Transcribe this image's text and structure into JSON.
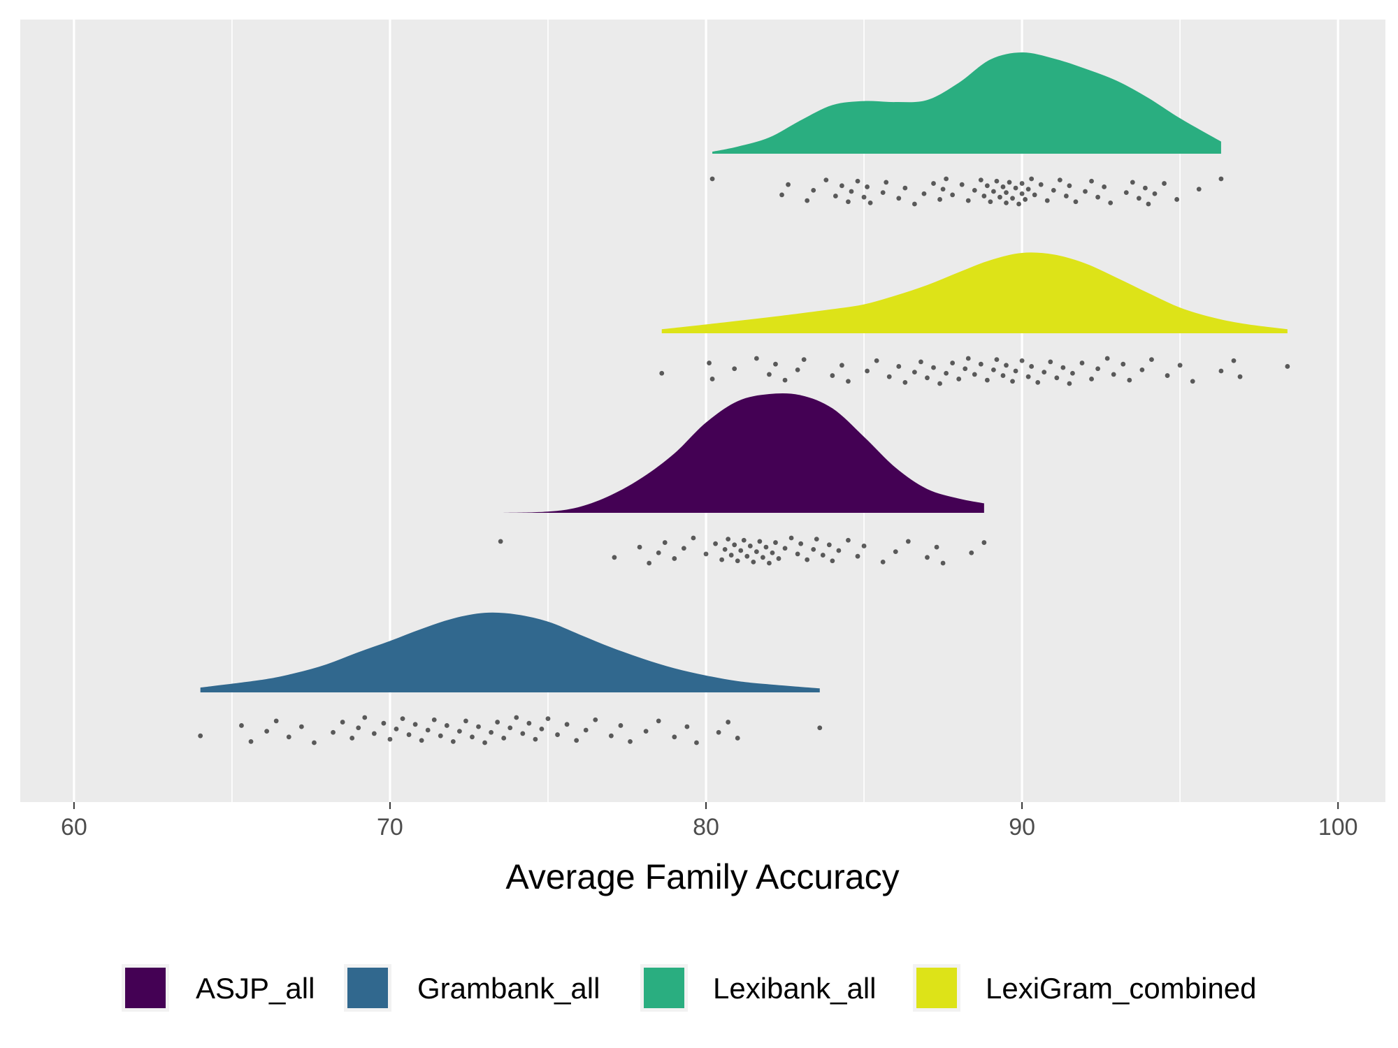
{
  "chart_data": {
    "type": "raincloud",
    "title": "",
    "xlabel": "Average Family Accuracy",
    "ylabel": "",
    "xlim": [
      58.3,
      101.5
    ],
    "x_ticks": [
      60,
      70,
      80,
      90,
      100
    ],
    "x_tick_labels": [
      "60",
      "70",
      "80",
      "90",
      "100"
    ],
    "grid": true,
    "legend_position": "bottom",
    "series": [
      {
        "name": "Lexibank_all",
        "color": "#2AAE80",
        "range": [
          80.2,
          96.3
        ],
        "density": [
          [
            80.2,
            0.02
          ],
          [
            81,
            0.07
          ],
          [
            82,
            0.16
          ],
          [
            83,
            0.33
          ],
          [
            84,
            0.48
          ],
          [
            85,
            0.52
          ],
          [
            86,
            0.51
          ],
          [
            87,
            0.53
          ],
          [
            88,
            0.7
          ],
          [
            89,
            0.93
          ],
          [
            90,
            1
          ],
          [
            91,
            0.94
          ],
          [
            92,
            0.84
          ],
          [
            93,
            0.72
          ],
          [
            94,
            0.55
          ],
          [
            95,
            0.35
          ],
          [
            96.3,
            0.12
          ]
        ],
        "points": [
          80.2,
          82.4,
          82.6,
          83.2,
          83.4,
          83.8,
          84.1,
          84.3,
          84.5,
          84.6,
          84.8,
          85,
          85.1,
          85.2,
          85.6,
          85.7,
          86.1,
          86.3,
          86.6,
          86.9,
          87.2,
          87.4,
          87.5,
          87.6,
          87.8,
          88.1,
          88.3,
          88.5,
          88.7,
          88.8,
          88.9,
          89,
          89.1,
          89.2,
          89.3,
          89.4,
          89.5,
          89.5,
          89.6,
          89.7,
          89.8,
          89.9,
          90,
          90,
          90.1,
          90.2,
          90.3,
          90.4,
          90.6,
          90.8,
          91,
          91.2,
          91.4,
          91.5,
          91.7,
          92,
          92.2,
          92.4,
          92.6,
          92.8,
          93.3,
          93.5,
          93.7,
          93.9,
          94,
          94.2,
          94.5,
          94.9,
          95.6,
          96.3
        ]
      },
      {
        "name": "LexiGram_combined",
        "color": "#DDE318",
        "range": [
          78.6,
          98.4
        ],
        "density": [
          [
            78.6,
            0.05
          ],
          [
            80,
            0.11
          ],
          [
            82,
            0.2
          ],
          [
            84,
            0.3
          ],
          [
            85,
            0.36
          ],
          [
            86,
            0.47
          ],
          [
            87,
            0.6
          ],
          [
            88,
            0.76
          ],
          [
            89,
            0.91
          ],
          [
            90,
            1
          ],
          [
            91,
            0.98
          ],
          [
            92,
            0.87
          ],
          [
            93,
            0.69
          ],
          [
            94,
            0.5
          ],
          [
            95,
            0.32
          ],
          [
            96,
            0.2
          ],
          [
            97,
            0.12
          ],
          [
            98.4,
            0.05
          ]
        ],
        "points": [
          78.6,
          80.1,
          80.2,
          80.9,
          81.6,
          82,
          82.2,
          82.5,
          82.9,
          83.1,
          84,
          84.3,
          84.5,
          85.1,
          85.4,
          85.8,
          86.1,
          86.3,
          86.6,
          86.8,
          87,
          87.2,
          87.4,
          87.6,
          87.8,
          88,
          88.2,
          88.3,
          88.5,
          88.7,
          88.9,
          89.1,
          89.2,
          89.4,
          89.5,
          89.7,
          89.8,
          90,
          90.2,
          90.3,
          90.5,
          90.7,
          90.9,
          91.1,
          91.3,
          91.5,
          91.6,
          91.9,
          92.2,
          92.4,
          92.7,
          92.9,
          93.2,
          93.4,
          93.8,
          94.1,
          94.6,
          95,
          95.4,
          96.3,
          96.7,
          96.9,
          98.4
        ]
      },
      {
        "name": "ASJP_all",
        "color": "#440154",
        "range": [
          73.5,
          88.8
        ],
        "density": [
          [
            73.5,
            0
          ],
          [
            75,
            0.01
          ],
          [
            76,
            0.05
          ],
          [
            77,
            0.15
          ],
          [
            78,
            0.3
          ],
          [
            79,
            0.5
          ],
          [
            80,
            0.76
          ],
          [
            81,
            0.94
          ],
          [
            82,
            1
          ],
          [
            83,
            0.99
          ],
          [
            84,
            0.88
          ],
          [
            85,
            0.64
          ],
          [
            86,
            0.38
          ],
          [
            87,
            0.2
          ],
          [
            88,
            0.12
          ],
          [
            88.8,
            0.08
          ]
        ],
        "points": [
          73.5,
          77.1,
          77.9,
          78.2,
          78.5,
          78.7,
          79,
          79.3,
          79.6,
          80,
          80.3,
          80.5,
          80.6,
          80.7,
          80.8,
          80.9,
          81,
          81.1,
          81.2,
          81.3,
          81.4,
          81.5,
          81.6,
          81.7,
          81.8,
          81.9,
          82,
          82.1,
          82.2,
          82.3,
          82.5,
          82.7,
          82.9,
          83,
          83.2,
          83.4,
          83.5,
          83.7,
          83.9,
          84,
          84.2,
          84.5,
          84.8,
          85,
          85.6,
          86,
          86.4,
          87,
          87.3,
          87.5,
          88.4,
          88.8
        ]
      },
      {
        "name": "Grambank_all",
        "color": "#31688E",
        "range": [
          64,
          83.6
        ],
        "density": [
          [
            64,
            0.06
          ],
          [
            66,
            0.16
          ],
          [
            67,
            0.24
          ],
          [
            68,
            0.35
          ],
          [
            69,
            0.5
          ],
          [
            70,
            0.64
          ],
          [
            71,
            0.79
          ],
          [
            72,
            0.92
          ],
          [
            73,
            0.99
          ],
          [
            74,
            0.97
          ],
          [
            75,
            0.88
          ],
          [
            76,
            0.72
          ],
          [
            77,
            0.56
          ],
          [
            78,
            0.42
          ],
          [
            79,
            0.3
          ],
          [
            80,
            0.21
          ],
          [
            81,
            0.14
          ],
          [
            82,
            0.1
          ],
          [
            83.6,
            0.05
          ]
        ],
        "points": [
          64,
          65.3,
          65.6,
          66.1,
          66.4,
          66.8,
          67.2,
          67.6,
          68.2,
          68.5,
          68.8,
          69,
          69.2,
          69.5,
          69.8,
          70,
          70.2,
          70.4,
          70.6,
          70.8,
          71,
          71.2,
          71.4,
          71.6,
          71.8,
          72,
          72.2,
          72.4,
          72.6,
          72.8,
          73,
          73.2,
          73.4,
          73.6,
          73.8,
          74,
          74.2,
          74.4,
          74.6,
          74.8,
          75,
          75.3,
          75.6,
          75.9,
          76.2,
          76.5,
          77,
          77.3,
          77.6,
          78.1,
          78.5,
          79,
          79.4,
          79.7,
          80.4,
          80.7,
          81,
          83.6
        ]
      }
    ]
  },
  "legend": {
    "items": [
      {
        "label": "ASJP_all",
        "color": "#440154"
      },
      {
        "label": "Grambank_all",
        "color": "#31688E"
      },
      {
        "label": "Lexibank_all",
        "color": "#2AAE80"
      },
      {
        "label": "LexiGram_combined",
        "color": "#DDE318"
      }
    ]
  }
}
